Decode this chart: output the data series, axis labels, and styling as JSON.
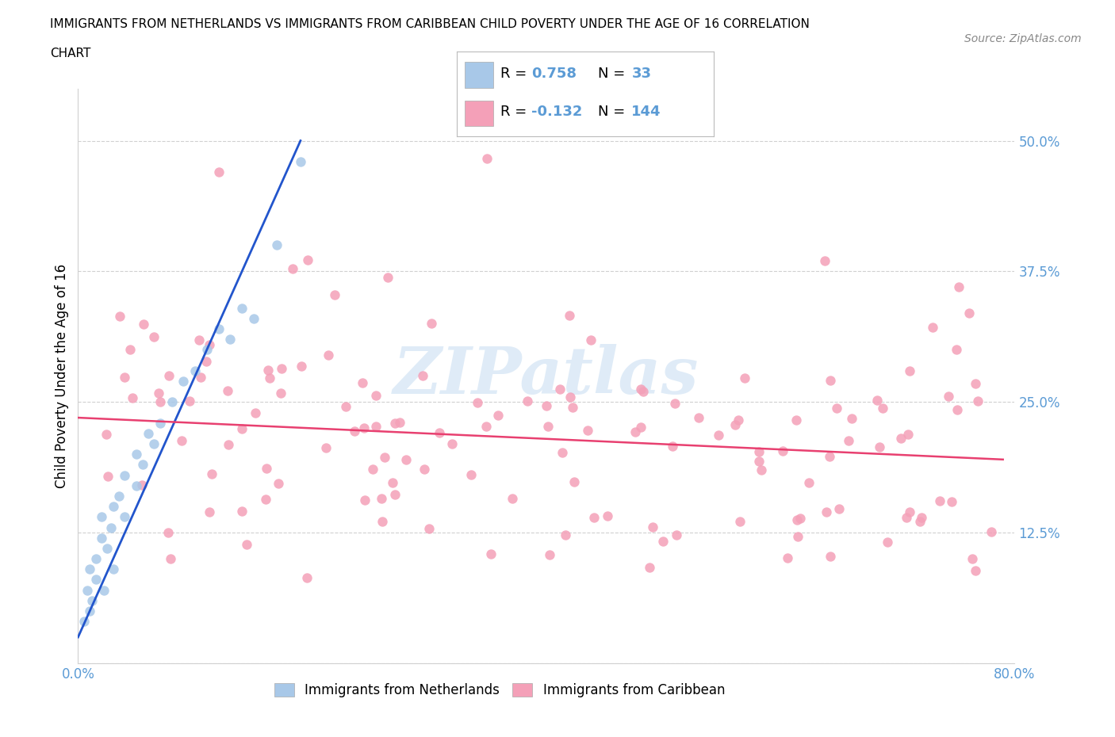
{
  "title_line1": "IMMIGRANTS FROM NETHERLANDS VS IMMIGRANTS FROM CARIBBEAN CHILD POVERTY UNDER THE AGE OF 16 CORRELATION",
  "title_line2": "CHART",
  "source_text": "Source: ZipAtlas.com",
  "ylabel": "Child Poverty Under the Age of 16",
  "xlim": [
    0.0,
    0.8
  ],
  "ylim": [
    0.0,
    0.55
  ],
  "netherlands_color": "#a8c8e8",
  "caribbean_color": "#f4a0b8",
  "netherlands_line_color": "#2255cc",
  "caribbean_line_color": "#e84070",
  "netherlands_R": 0.758,
  "netherlands_N": 33,
  "caribbean_R": -0.132,
  "caribbean_N": 144,
  "watermark_text": "ZIPatlas",
  "background_color": "#ffffff",
  "tick_color": "#5b9bd5",
  "neth_line_x0": 0.0,
  "neth_line_y0": 0.025,
  "neth_line_x1": 0.19,
  "neth_line_y1": 0.5,
  "carib_line_x0": 0.0,
  "carib_line_y0": 0.235,
  "carib_line_x1": 0.79,
  "carib_line_y1": 0.195
}
